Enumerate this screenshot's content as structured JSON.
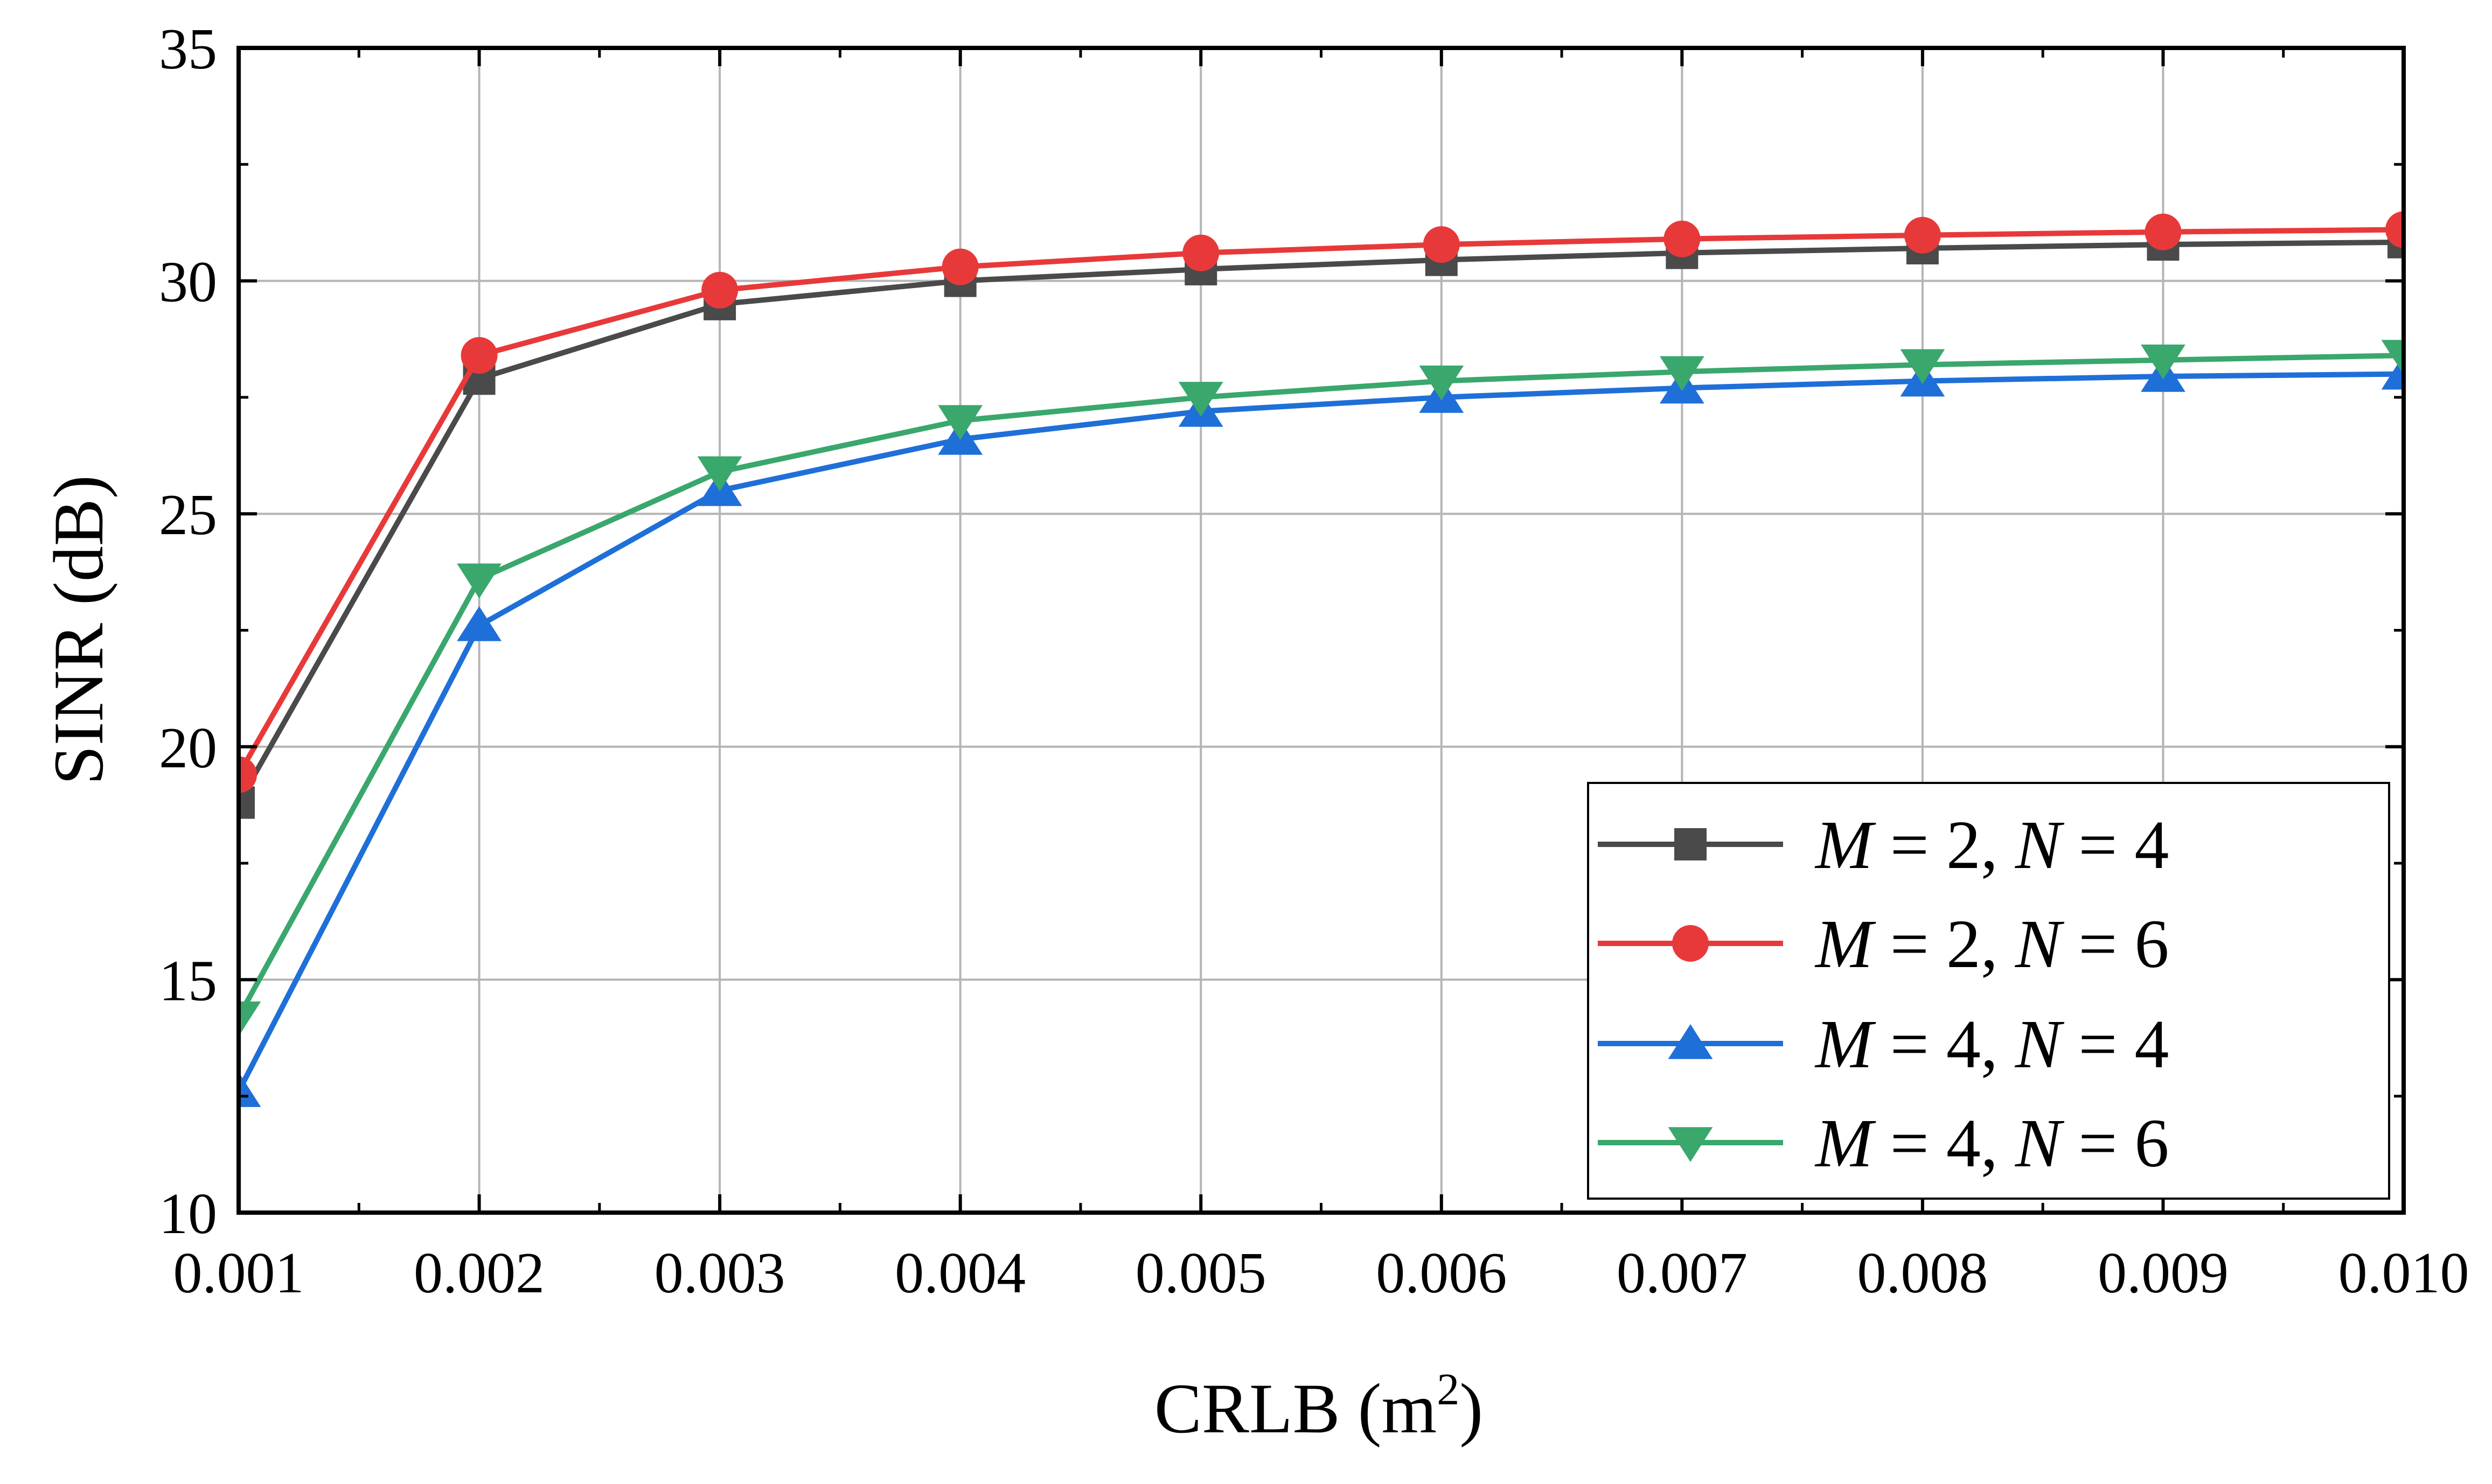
{
  "chart_data": {
    "type": "line",
    "title": "",
    "xlabel": "CRLB (m",
    "xlabel_superscript": "2",
    "xlabel_suffix": ")",
    "ylabel": "SINR (dB)",
    "xlim": [
      0.001,
      0.01
    ],
    "ylim": [
      10,
      35
    ],
    "grid": true,
    "legend_position": "bottom-right",
    "x": [
      0.001,
      0.002,
      0.003,
      0.004,
      0.005,
      0.006,
      0.007,
      0.008,
      0.009,
      0.01
    ],
    "x_tick_labels": [
      "0.001",
      "0.002",
      "0.003",
      "0.004",
      "0.005",
      "0.006",
      "0.007",
      "0.008",
      "0.009",
      "0.010"
    ],
    "y_ticks": [
      10,
      15,
      20,
      25,
      30,
      35
    ],
    "y_tick_labels": [
      "10",
      "15",
      "20",
      "25",
      "30",
      "35"
    ],
    "series": [
      {
        "name": "M = 2, N = 4",
        "legend_parts": {
          "m": "M",
          "m_eq": " = 2, ",
          "n": "N",
          "n_eq": " = 4"
        },
        "color": "#4a4a4a",
        "marker": "square",
        "values": [
          18.8,
          27.9,
          29.5,
          30.0,
          30.25,
          30.45,
          30.6,
          30.7,
          30.78,
          30.83
        ]
      },
      {
        "name": "M = 2, N = 6",
        "legend_parts": {
          "m": "M",
          "m_eq": " = 2, ",
          "n": "N",
          "n_eq": " = 6"
        },
        "color": "#e8393a",
        "marker": "circle",
        "values": [
          19.4,
          28.4,
          29.8,
          30.3,
          30.6,
          30.78,
          30.9,
          30.98,
          31.05,
          31.1
        ]
      },
      {
        "name": "M = 4, N = 4",
        "legend_parts": {
          "m": "M",
          "m_eq": " = 4, ",
          "n": "N",
          "n_eq": " = 4"
        },
        "color": "#1f6fd8",
        "marker": "triangle-up",
        "values": [
          12.6,
          22.6,
          25.5,
          26.6,
          27.2,
          27.5,
          27.7,
          27.85,
          27.95,
          28.0
        ]
      },
      {
        "name": "M = 4, N = 6",
        "legend_parts": {
          "m": "M",
          "m_eq": " = 4, ",
          "n": "N",
          "n_eq": " = 6"
        },
        "color": "#3aa76d",
        "marker": "triangle-down",
        "values": [
          14.2,
          23.6,
          25.9,
          27.0,
          27.5,
          27.85,
          28.05,
          28.2,
          28.3,
          28.4
        ]
      }
    ]
  }
}
